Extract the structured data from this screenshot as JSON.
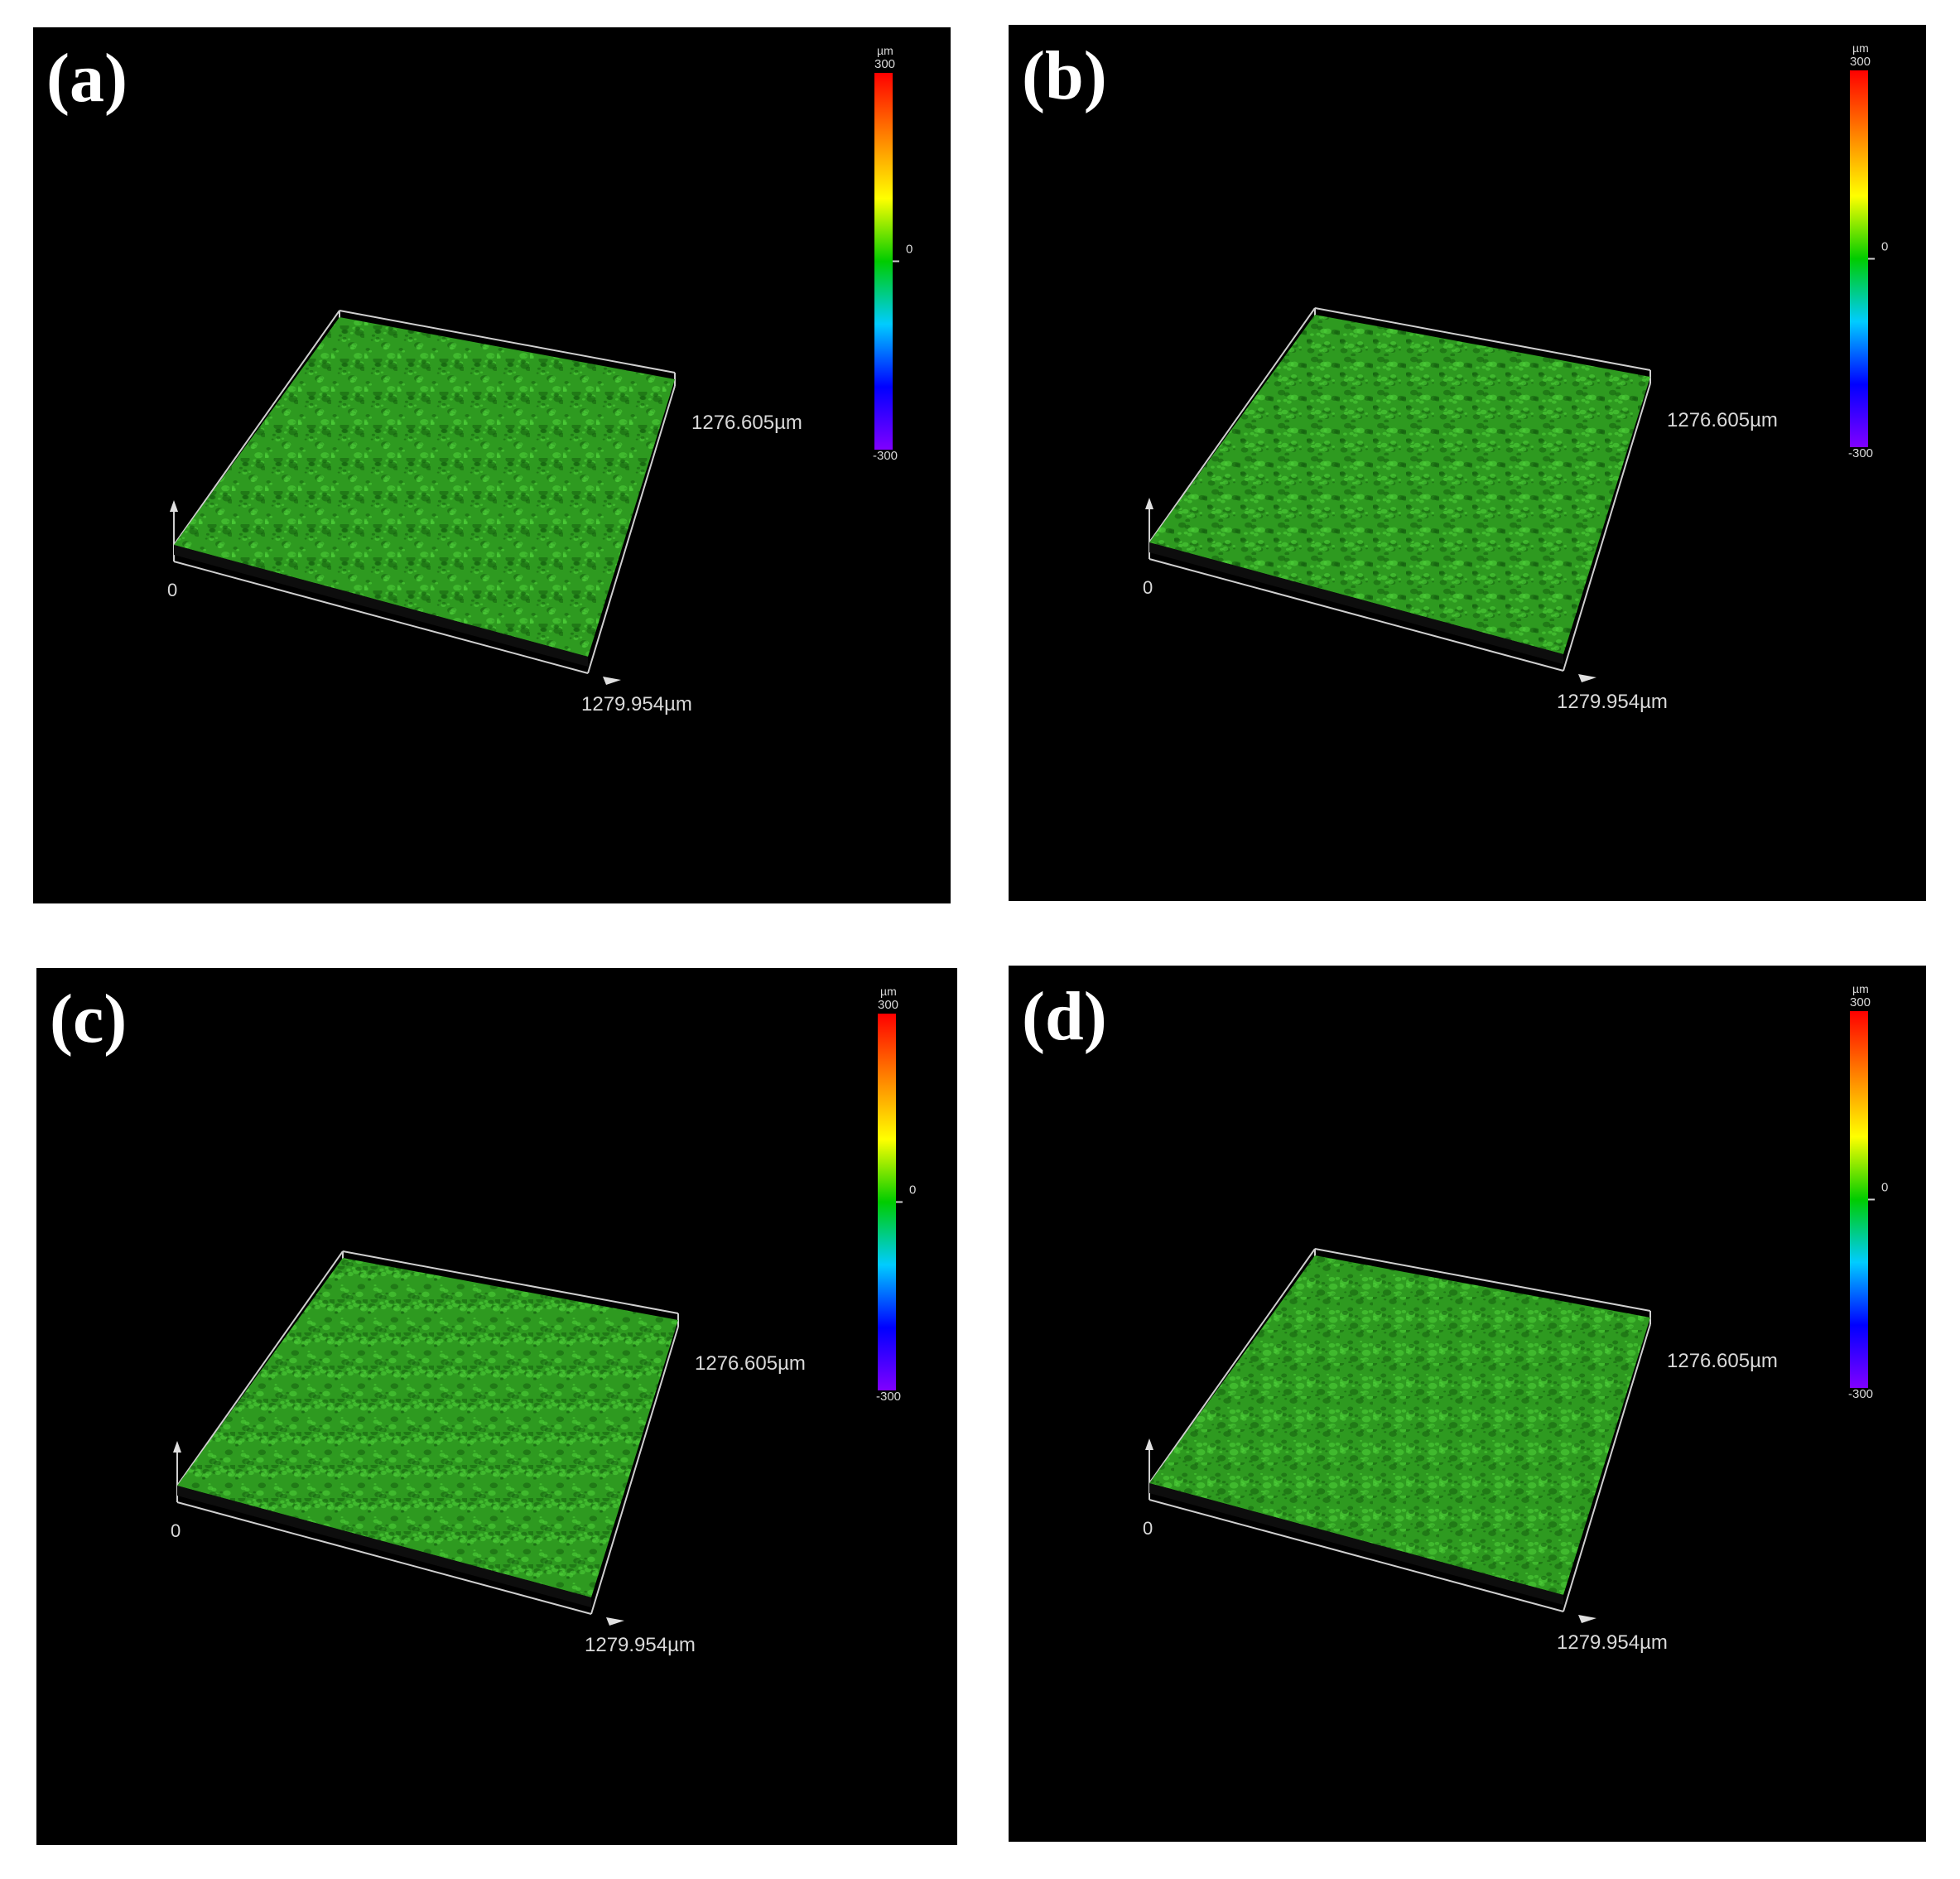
{
  "panels": [
    {
      "id": "a",
      "label": "(a)"
    },
    {
      "id": "b",
      "label": "(b)"
    },
    {
      "id": "c",
      "label": "(c)"
    },
    {
      "id": "d",
      "label": "(d)"
    }
  ],
  "scale": {
    "unit": "µm",
    "max_label": "300",
    "mid_label": "0",
    "min_label": "-300",
    "colors": [
      "#ff0000",
      "#ff8000",
      "#ffff00",
      "#00cc00",
      "#00ccff",
      "#0000ff",
      "#8000ff"
    ]
  },
  "axes": {
    "origin_label": "0",
    "x_extent_label": "1279.954µm",
    "y_extent_label": "1276.605µm"
  },
  "surface_color": "#2e9a20"
}
